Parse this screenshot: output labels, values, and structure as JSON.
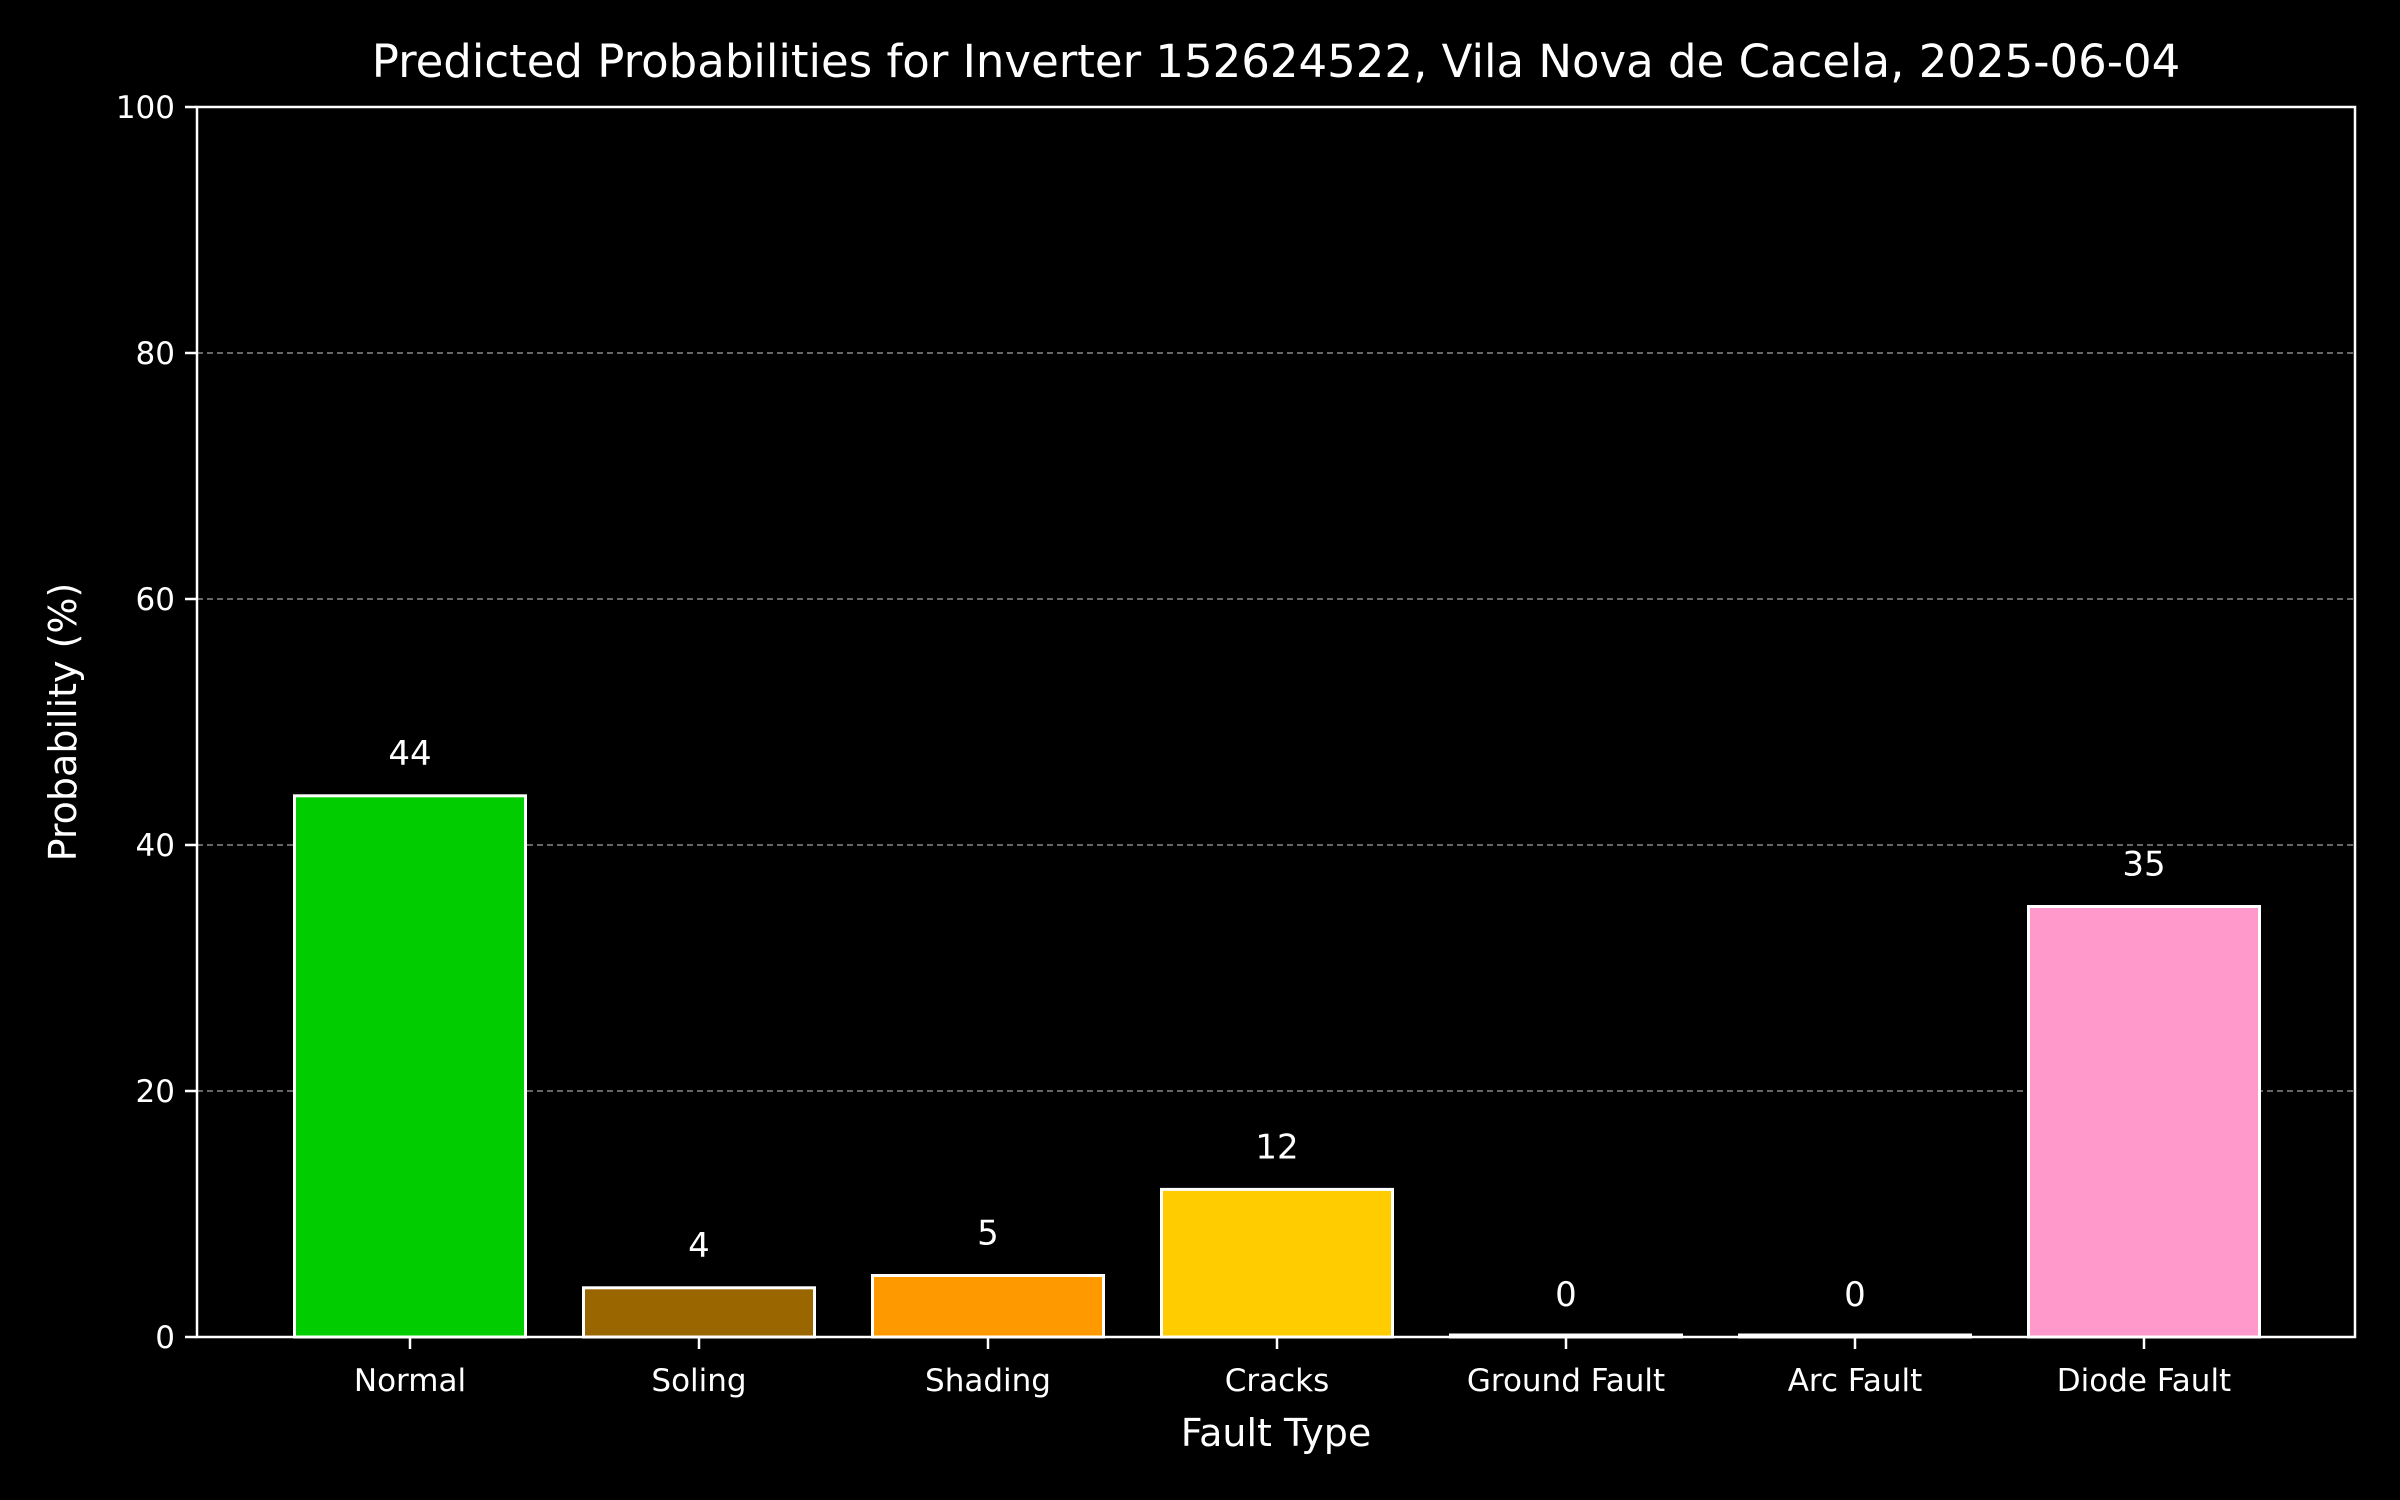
{
  "chart_data": {
    "type": "bar",
    "title": "Predicted Probabilities for Inverter 152624522, Vila Nova de Cacela, 2025-06-04",
    "xlabel": "Fault Type",
    "ylabel": "Probability (%)",
    "categories": [
      "Normal",
      "Soling",
      "Shading",
      "Cracks",
      "Ground Fault",
      "Arc Fault",
      "Diode Fault"
    ],
    "values": [
      44,
      4,
      5,
      12,
      0,
      0,
      35
    ],
    "data_labels": [
      "44",
      "4",
      "5",
      "12",
      "0",
      "0",
      "35"
    ],
    "colors": [
      "#00cc00",
      "#996600",
      "#ff9900",
      "#ffcc00",
      "#ff0000",
      "#9900cc",
      "#ff99cc"
    ],
    "bar_edge_color": "#ffffff",
    "background_color": "#000000",
    "ylim": [
      0,
      100
    ],
    "yticks": [
      0,
      20,
      40,
      60,
      80,
      100
    ],
    "ytick_labels": [
      "0",
      "20",
      "40",
      "60",
      "80",
      "100"
    ],
    "grid": true,
    "grid_axis": "y",
    "grid_style": "dashed",
    "legend": false
  }
}
